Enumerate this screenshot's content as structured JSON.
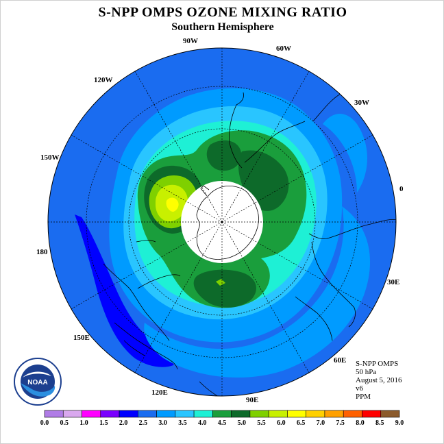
{
  "title": "S-NPP OMPS OZONE MIXING RATIO",
  "subtitle": "Southern Hemisphere",
  "longitude_labels": [
    "90W",
    "60W",
    "30W",
    "0",
    "30E",
    "60E",
    "90E",
    "120E",
    "150E",
    "180",
    "150W",
    "120W"
  ],
  "info": {
    "instrument": "S-NPP OMPS",
    "level": "50 hPa",
    "date": "August 5, 2016",
    "version": "v6",
    "units": "PPM"
  },
  "logo_text": "NOAA",
  "colorbar": {
    "ticks": [
      "0.0",
      "0.5",
      "1.0",
      "1.5",
      "2.0",
      "2.5",
      "3.0",
      "3.5",
      "4.0",
      "4.5",
      "5.0",
      "5.5",
      "6.0",
      "6.5",
      "7.0",
      "7.5",
      "8.0",
      "8.5",
      "9.0"
    ],
    "colors": [
      "#b07ce6",
      "#d9a8ee",
      "#ff00ff",
      "#7a00ff",
      "#0000ff",
      "#1a6cf0",
      "#009bff",
      "#29c5ff",
      "#1ef0d5",
      "#1a9e3c",
      "#0d6a2a",
      "#7fd000",
      "#c8f000",
      "#ffff00",
      "#ffd000",
      "#ffa000",
      "#ff6000",
      "#ff0000",
      "#8b5a2b"
    ]
  },
  "map_colors": {
    "c2_0": "#0000ff",
    "c2_5": "#1a6cf0",
    "c3_0": "#009bff",
    "c3_5": "#29c5ff",
    "c4_0": "#1ef0d5",
    "c4_5": "#1a9e3c",
    "c5_0": "#0d6a2a",
    "c5_5": "#7fd000",
    "c6_0": "#c8f000",
    "c6_5": "#ffff00",
    "pole": "#ffffff"
  }
}
